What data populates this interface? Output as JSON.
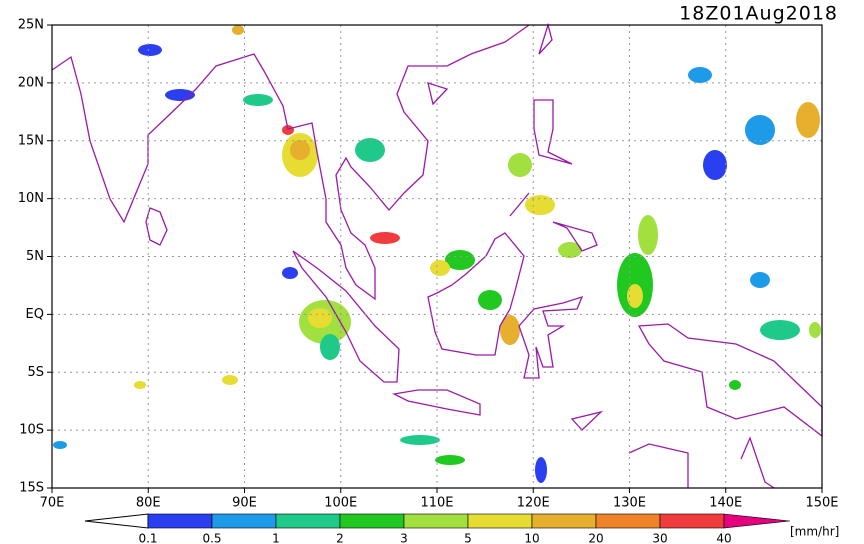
{
  "title": "18Z01Aug2018",
  "map": {
    "extent": {
      "lon": [
        70,
        150
      ],
      "lat": [
        -15,
        25
      ]
    },
    "lon_ticks": [
      {
        "value": 70,
        "label": "70E"
      },
      {
        "value": 80,
        "label": "80E"
      },
      {
        "value": 90,
        "label": "90E"
      },
      {
        "value": 100,
        "label": "100E"
      },
      {
        "value": 110,
        "label": "110E"
      },
      {
        "value": 120,
        "label": "120E"
      },
      {
        "value": 130,
        "label": "130E"
      },
      {
        "value": 140,
        "label": "140E"
      },
      {
        "value": 150,
        "label": "150E"
      }
    ],
    "lat_ticks": [
      {
        "value": 25,
        "label": "25N"
      },
      {
        "value": 20,
        "label": "20N"
      },
      {
        "value": 15,
        "label": "15N"
      },
      {
        "value": 10,
        "label": "10N"
      },
      {
        "value": 5,
        "label": "5N"
      },
      {
        "value": 0,
        "label": "EQ"
      },
      {
        "value": -5,
        "label": "5S"
      },
      {
        "value": -10,
        "label": "10S"
      },
      {
        "value": -15,
        "label": "15S"
      }
    ],
    "grid": true
  },
  "legend": {
    "levels": [
      0.1,
      0.5,
      1,
      2,
      3,
      5,
      10,
      20,
      30,
      40
    ],
    "colors": [
      "#2a3ff0",
      "#1e9be8",
      "#1ec98a",
      "#20c820",
      "#a2e040",
      "#e6dc32",
      "#e6af2d",
      "#f08228",
      "#f03c3c",
      "#e6007f"
    ],
    "unit": "[mm/hr]"
  }
}
